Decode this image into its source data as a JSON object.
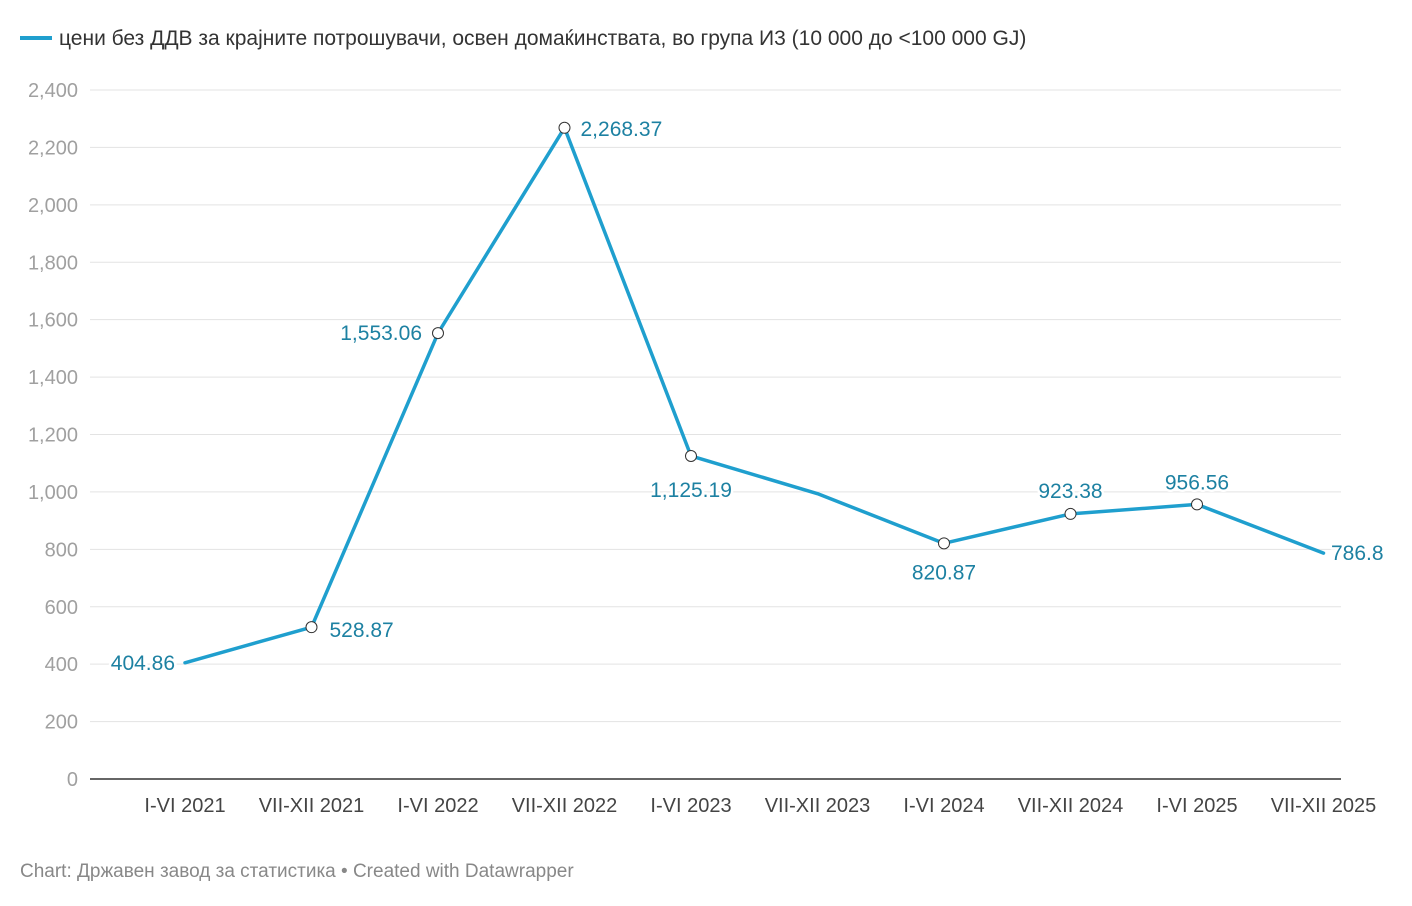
{
  "chart_data": {
    "type": "line",
    "title": "",
    "xlabel": "",
    "ylabel": "",
    "categories": [
      "I-VI 2021",
      "VII-XII 2021",
      "I-VI 2022",
      "VII-XII 2022",
      "I-VI 2023",
      "VII-XII 2023",
      "I-VI 2024",
      "VII-XII 2024",
      "I-VI 2025",
      "VII-XII 2025"
    ],
    "series": [
      {
        "name": "цени без ДДВ за крајните потрошувачи, освен домаќинствата, во група И3 (10 000 до <100 000 GJ)",
        "values": [
          404.86,
          528.87,
          1553.06,
          2268.37,
          1125.19,
          994,
          820.87,
          923.38,
          956.56,
          786.8
        ],
        "color": "#1f9fce"
      }
    ],
    "data_labels": [
      {
        "index": 0,
        "text": "404.86"
      },
      {
        "index": 1,
        "text": "528.87"
      },
      {
        "index": 2,
        "text": "1,553.06"
      },
      {
        "index": 3,
        "text": "2,268.37"
      },
      {
        "index": 4,
        "text": "1,125.19"
      },
      {
        "index": 6,
        "text": "820.87"
      },
      {
        "index": 7,
        "text": "923.38"
      },
      {
        "index": 8,
        "text": "956.56"
      },
      {
        "index": 9,
        "text": "786.8"
      }
    ],
    "y_ticks": [
      0,
      200,
      400,
      600,
      800,
      1000,
      1200,
      1400,
      1600,
      1800,
      2000,
      2200,
      2400
    ],
    "y_tick_labels": [
      "0",
      "200",
      "400",
      "600",
      "800",
      "1,000",
      "1,200",
      "1,400",
      "1,600",
      "1,800",
      "2,000",
      "2,200",
      "2,400"
    ],
    "ylim": [
      0,
      2400
    ],
    "grid": true,
    "legend_position": "top-left"
  },
  "footer": {
    "text": "Chart: Државен завод за статистика • Created with Datawrapper"
  },
  "colors": {
    "line": "#1f9fce",
    "label": "#1d81a2",
    "grid": "#e3e3e3",
    "baseline": "#333333"
  }
}
